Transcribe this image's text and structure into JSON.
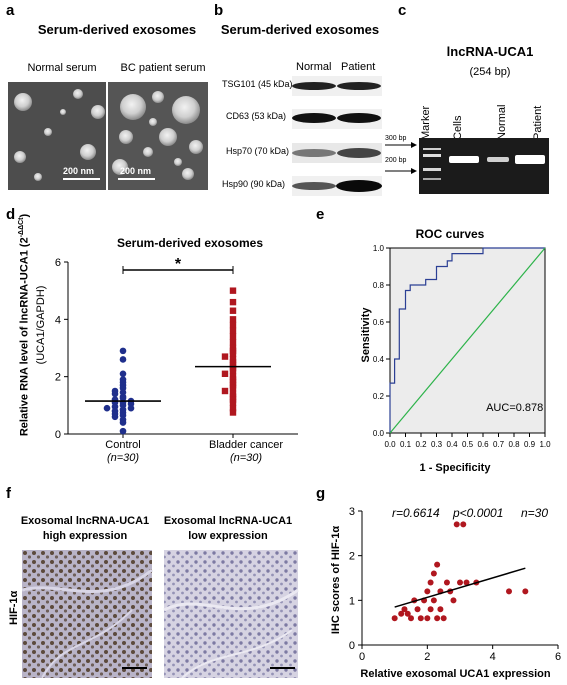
{
  "panels": {
    "a": {
      "letter": "a",
      "title": "Serum-derived exosomes",
      "left_label": "Normal serum",
      "right_label": "BC patient serum",
      "scale_left": "200 nm",
      "scale_right": "200 nm"
    },
    "b": {
      "letter": "b",
      "title": "Serum-derived exosomes",
      "col_normal": "Normal",
      "col_patient": "Patient",
      "bands": [
        {
          "label": "TSG101 (45 kDa)"
        },
        {
          "label": "CD63 (53 kDa)"
        },
        {
          "label": "Hsp70 (70 kDa)"
        },
        {
          "label": "Hsp90 (90 kDa)"
        }
      ]
    },
    "c": {
      "letter": "c",
      "title": "lncRNA-UCA1",
      "subtitle": "(254 bp)",
      "lanes": [
        "Marker",
        "Cells",
        "Normal",
        "Patient"
      ],
      "bp_300": "300 bp",
      "bp_200": "200 bp"
    },
    "d": {
      "letter": "d"
    },
    "e": {
      "letter": "e"
    },
    "f": {
      "letter": "f",
      "left_title_1": "Exosomal lncRNA-UCA1",
      "left_title_2": "high expression",
      "right_title_1": "Exosomal lncRNA-UCA1",
      "right_title_2": "low expression",
      "row_label": "HIF-1α"
    },
    "g": {
      "letter": "g"
    }
  },
  "chart_data": [
    {
      "panel": "d",
      "type": "scatter",
      "title": "Serum-derived exosomes",
      "ylabel": "Relative RNA level of lncRNA-UCA1 (2^-ΔΔCt) (UCA1/GAPDH)",
      "ylabel_line1": "Relative RNA level of lncRNA-UCA1 (2",
      "ylabel_sup": "-ΔΔCt",
      "ylabel_close": ")",
      "ylabel_line2": "(UCA1/GAPDH)",
      "ylim": [
        0,
        6
      ],
      "yticks": [
        "0",
        "2",
        "4",
        "6"
      ],
      "significance": "*",
      "categories": [
        {
          "name": "Control",
          "n": "(n=30)"
        },
        {
          "name": "Bladder cancer",
          "n": "(n=30)"
        }
      ],
      "series": [
        {
          "name": "Control",
          "color": "#1f2f8c",
          "marker": "circle",
          "mean": 1.15,
          "values": [
            2.9,
            2.6,
            2.1,
            1.9,
            1.8,
            1.7,
            1.6,
            1.5,
            1.45,
            1.4,
            1.3,
            1.25,
            1.2,
            1.15,
            1.1,
            1.1,
            1.05,
            1.0,
            0.95,
            0.9,
            0.9,
            0.85,
            0.8,
            0.75,
            0.7,
            0.65,
            0.6,
            0.5,
            0.4,
            0.1
          ]
        },
        {
          "name": "Bladder cancer",
          "color": "#b0171f",
          "marker": "square",
          "mean": 2.35,
          "values": [
            5.0,
            4.6,
            4.3,
            4.0,
            3.8,
            3.6,
            3.4,
            3.2,
            3.0,
            2.9,
            2.8,
            2.7,
            2.6,
            2.5,
            2.4,
            2.3,
            2.2,
            2.1,
            2.0,
            1.9,
            1.8,
            1.7,
            1.6,
            1.5,
            1.4,
            1.3,
            1.2,
            1.1,
            0.9,
            0.75
          ]
        }
      ]
    },
    {
      "panel": "e",
      "type": "line",
      "title": "ROC curves",
      "xlabel": "1 - Specificity",
      "ylabel": "Sensitivity",
      "xlim": [
        0,
        1
      ],
      "ylim": [
        0,
        1
      ],
      "xticks": [
        "0.0",
        "0.1",
        "0.2",
        "0.3",
        "0.4",
        "0.5",
        "0.6",
        "0.7",
        "0.8",
        "0.9",
        "1.0"
      ],
      "yticks": [
        "0.0",
        "0.2",
        "0.4",
        "0.6",
        "0.8",
        "1.0"
      ],
      "annotation": "AUC=0.878",
      "series": [
        {
          "name": "ROC",
          "color": "#2b3f94",
          "points": [
            [
              0,
              0
            ],
            [
              0,
              0.27
            ],
            [
              0.03,
              0.27
            ],
            [
              0.03,
              0.4
            ],
            [
              0.06,
              0.4
            ],
            [
              0.06,
              0.67
            ],
            [
              0.1,
              0.67
            ],
            [
              0.1,
              0.77
            ],
            [
              0.13,
              0.77
            ],
            [
              0.13,
              0.8
            ],
            [
              0.23,
              0.8
            ],
            [
              0.23,
              0.83
            ],
            [
              0.3,
              0.83
            ],
            [
              0.3,
              0.9
            ],
            [
              0.37,
              0.9
            ],
            [
              0.37,
              0.93
            ],
            [
              0.4,
              0.93
            ],
            [
              0.4,
              0.97
            ],
            [
              0.6,
              0.97
            ],
            [
              0.6,
              1.0
            ],
            [
              1.0,
              1.0
            ]
          ]
        },
        {
          "name": "Reference",
          "color": "#2db34a",
          "points": [
            [
              0,
              0
            ],
            [
              1,
              1
            ]
          ]
        }
      ]
    },
    {
      "panel": "g",
      "type": "scatter",
      "xlabel": "Relative exosomal UCA1 expression",
      "ylabel": "IHC scores of HIF-1α",
      "xlim": [
        0,
        6
      ],
      "ylim": [
        0,
        3
      ],
      "xticks": [
        "0",
        "2",
        "4",
        "6"
      ],
      "yticks": [
        "0",
        "1",
        "2",
        "3"
      ],
      "stat_r": "r=0.6614",
      "stat_p": "p<0.0001",
      "stat_n": "n=30",
      "fit": {
        "x": [
          1.0,
          5.0
        ],
        "y": [
          0.85,
          1.72
        ]
      },
      "series": [
        {
          "name": "Samples",
          "color": "#b0171f",
          "x": [
            1.0,
            1.2,
            1.3,
            1.4,
            1.5,
            1.6,
            1.7,
            1.8,
            1.9,
            2.0,
            2.0,
            2.1,
            2.1,
            2.2,
            2.2,
            2.3,
            2.3,
            2.4,
            2.4,
            2.5,
            2.6,
            2.7,
            2.8,
            2.9,
            3.0,
            3.1,
            3.2,
            3.5,
            4.5,
            5.0
          ],
          "y": [
            0.6,
            0.7,
            0.8,
            0.7,
            0.6,
            1.0,
            0.8,
            0.6,
            1.0,
            1.2,
            0.6,
            1.4,
            0.8,
            1.6,
            1.0,
            1.8,
            0.6,
            1.2,
            0.8,
            0.6,
            1.4,
            1.2,
            1.0,
            2.7,
            1.4,
            2.7,
            1.4,
            1.4,
            1.2,
            1.2
          ]
        }
      ]
    }
  ]
}
